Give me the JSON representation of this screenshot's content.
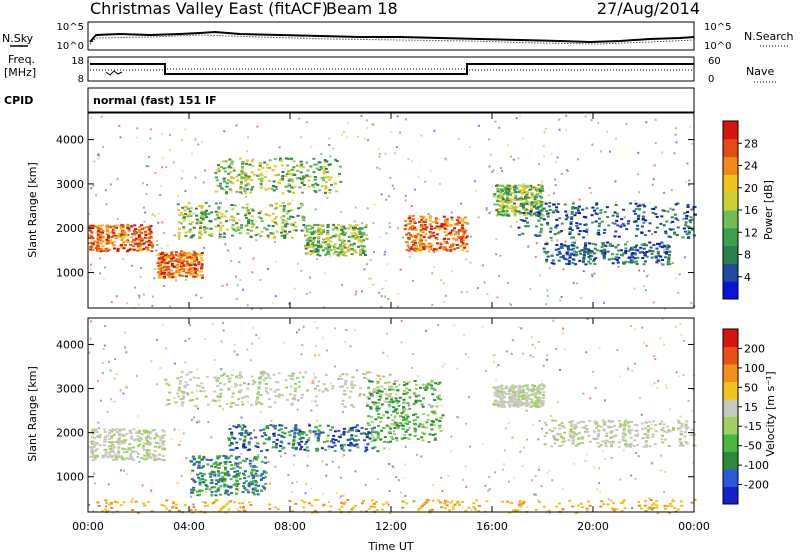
{
  "header": {
    "title": "Christmas Valley East (fitACF)",
    "beam": "Beam 18",
    "date": "27/Aug/2014"
  },
  "nsky_panel": {
    "left_label": "N.Sky",
    "right_label": "N.Search",
    "left_ticks": [
      "10^5",
      "10^0"
    ],
    "right_ticks": [
      "10^5",
      "10^0"
    ]
  },
  "freq_panel": {
    "left_label_1": "Freq.",
    "left_label_2": "[MHz]",
    "right_label": "Nave",
    "left_ticks": [
      "18",
      "8"
    ],
    "right_ticks": [
      "60",
      "0"
    ]
  },
  "cpid": {
    "label": "CPID",
    "value": "normal (fast) 151 IF"
  },
  "chart_data": [
    {
      "type": "heatmap",
      "name": "power",
      "ylabel": "Slant Range [km]",
      "xlabel": "",
      "ylim": [
        200,
        4600
      ],
      "yticks": [
        "1000",
        "2000",
        "3000",
        "4000"
      ],
      "colorbar": {
        "label": "Power [dB]",
        "ticks": [
          "28",
          "24",
          "20",
          "16",
          "12",
          "8",
          "4"
        ],
        "colors": [
          "#0a14d8",
          "#1f4aa0",
          "#2b7f4e",
          "#3aa04e",
          "#70be5a",
          "#c8d238",
          "#f2c41a",
          "#f08a18",
          "#e64a14",
          "#d8140e"
        ]
      },
      "features": [
        {
          "x": [
            0,
            2.5
          ],
          "y": [
            1500,
            2100
          ],
          "level": "high"
        },
        {
          "x": [
            2.7,
            4.5
          ],
          "y": [
            900,
            1500
          ],
          "level": "high"
        },
        {
          "x": [
            3.5,
            8.5
          ],
          "y": [
            1800,
            2600
          ],
          "level": "mid"
        },
        {
          "x": [
            5,
            10
          ],
          "y": [
            2800,
            3600
          ],
          "level": "mid"
        },
        {
          "x": [
            8.5,
            11
          ],
          "y": [
            1400,
            2100
          ],
          "level": "mid"
        },
        {
          "x": [
            12.5,
            15
          ],
          "y": [
            1500,
            2300
          ],
          "level": "high"
        },
        {
          "x": [
            16,
            18
          ],
          "y": [
            2300,
            3000
          ],
          "level": "mid"
        },
        {
          "x": [
            17,
            24
          ],
          "y": [
            1800,
            2600
          ],
          "level": "low"
        },
        {
          "x": [
            18,
            23
          ],
          "y": [
            1200,
            1700
          ],
          "level": "low"
        }
      ]
    },
    {
      "type": "heatmap",
      "name": "velocity",
      "ylabel": "Slant Range [km]",
      "xlabel": "Time UT",
      "ylim": [
        200,
        4600
      ],
      "yticks": [
        "1000",
        "2000",
        "3000",
        "4000"
      ],
      "xticks": [
        "00:00",
        "04:00",
        "08:00",
        "12:00",
        "16:00",
        "20:00",
        "00:00"
      ],
      "colorbar": {
        "label": "Velocity [m s⁻¹]",
        "ticks": [
          "200",
          "100",
          "50",
          "15",
          "-15",
          "-50",
          "-100",
          "-200"
        ],
        "colors": [
          "#1420c8",
          "#2a5ad8",
          "#2e8a3a",
          "#48b83a",
          "#a0d060",
          "#c8c8c0",
          "#f2c41a",
          "#f0901a",
          "#e85018",
          "#d81410"
        ]
      },
      "features": [
        {
          "x": [
            0,
            3
          ],
          "y": [
            1400,
            2100
          ],
          "level": "ground"
        },
        {
          "x": [
            3,
            12
          ],
          "y": [
            2600,
            3400
          ],
          "level": "ground"
        },
        {
          "x": [
            5.5,
            11.5
          ],
          "y": [
            1600,
            2200
          ],
          "level": "toward-strong"
        },
        {
          "x": [
            4,
            7
          ],
          "y": [
            600,
            1500
          ],
          "level": "toward"
        },
        {
          "x": [
            11,
            14
          ],
          "y": [
            1800,
            3200
          ],
          "level": "toward-weak"
        },
        {
          "x": [
            16,
            18
          ],
          "y": [
            2600,
            3100
          ],
          "level": "ground"
        },
        {
          "x": [
            18,
            24
          ],
          "y": [
            1700,
            2300
          ],
          "level": "ground"
        },
        {
          "x": [
            0,
            24
          ],
          "y": [
            200,
            500
          ],
          "level": "away"
        }
      ]
    }
  ]
}
